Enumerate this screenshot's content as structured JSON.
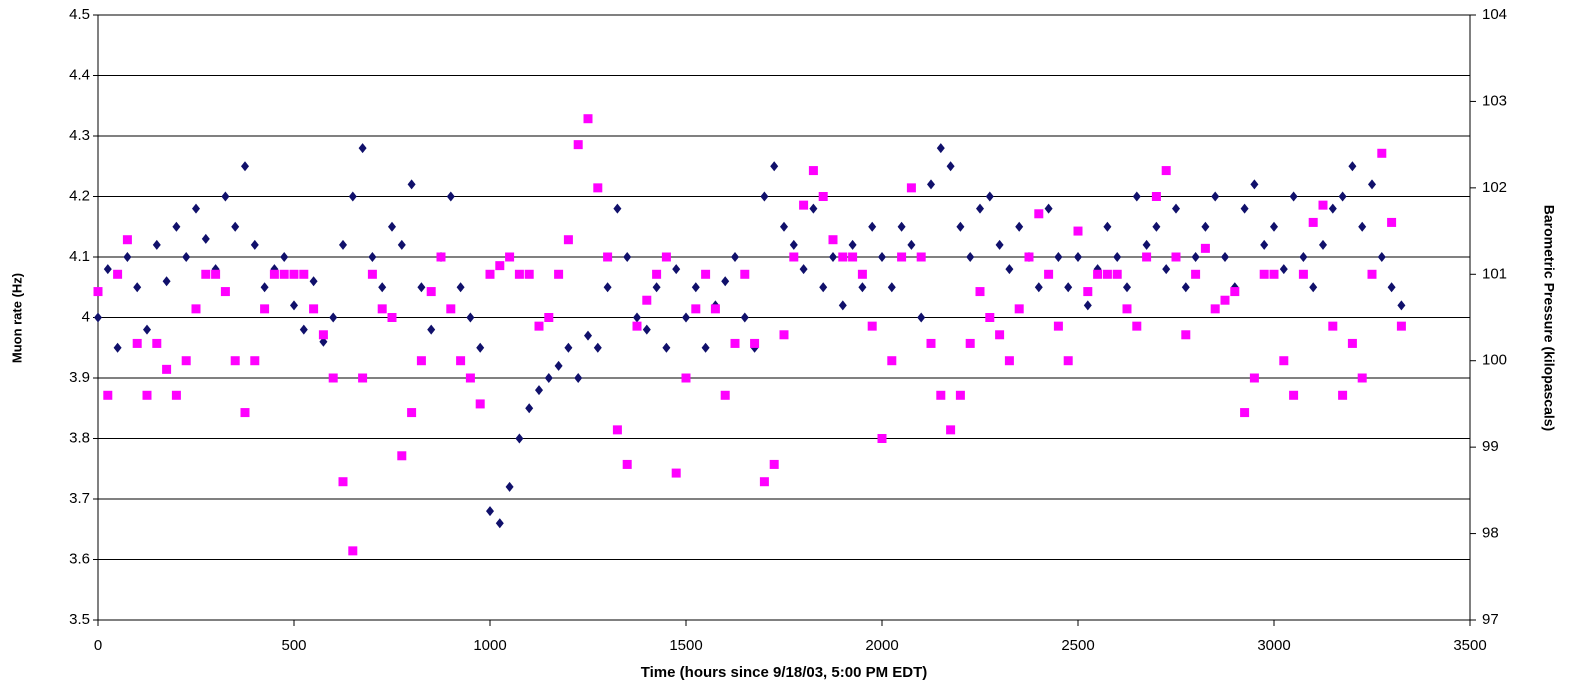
{
  "chart_data": {
    "type": "scatter",
    "xlabel": "Time (hours since 9/18/03, 5:00 PM EDT)",
    "ylabel": "Muon rate (Hz)",
    "y2label": "Barometric Pressure (kilopascals)",
    "xlim": [
      0,
      3500
    ],
    "xticks": [
      0,
      500,
      1000,
      1500,
      2000,
      2500,
      3000,
      3500
    ],
    "ylim": [
      3.5,
      4.5
    ],
    "yticks": [
      3.5,
      3.6,
      3.7,
      3.8,
      3.9,
      4,
      4.1,
      4.2,
      4.3,
      4.4,
      4.5
    ],
    "y2lim": [
      97,
      104
    ],
    "y2ticks": [
      97,
      98,
      99,
      100,
      101,
      102,
      103,
      104
    ],
    "grid": true,
    "x": [
      0,
      25,
      50,
      75,
      100,
      125,
      150,
      175,
      200,
      225,
      250,
      275,
      300,
      325,
      350,
      375,
      400,
      425,
      450,
      475,
      500,
      525,
      550,
      575,
      600,
      625,
      650,
      675,
      700,
      725,
      750,
      775,
      800,
      825,
      850,
      875,
      900,
      925,
      950,
      975,
      1000,
      1025,
      1050,
      1075,
      1100,
      1125,
      1150,
      1175,
      1200,
      1225,
      1250,
      1275,
      1300,
      1325,
      1350,
      1375,
      1400,
      1425,
      1450,
      1475,
      1500,
      1525,
      1550,
      1575,
      1600,
      1625,
      1650,
      1675,
      1700,
      1725,
      1750,
      1775,
      1800,
      1825,
      1850,
      1875,
      1900,
      1925,
      1950,
      1975,
      2000,
      2025,
      2050,
      2075,
      2100,
      2125,
      2150,
      2175,
      2200,
      2225,
      2250,
      2275,
      2300,
      2325,
      2350,
      2375,
      2400,
      2425,
      2450,
      2475,
      2500,
      2525,
      2550,
      2575,
      2600,
      2625,
      2650,
      2675,
      2700,
      2725,
      2750,
      2775,
      2800,
      2825,
      2850,
      2875,
      2900,
      2925,
      2950,
      2975,
      3000,
      3025,
      3050,
      3075,
      3100,
      3125,
      3150,
      3175,
      3200,
      3225,
      3250,
      3275,
      3300,
      3325
    ],
    "series": [
      {
        "color": "#10106b",
        "marker": "diamond",
        "values": [
          4.0,
          4.08,
          3.95,
          4.1,
          4.05,
          3.98,
          4.12,
          4.06,
          4.15,
          4.1,
          4.18,
          4.13,
          4.08,
          4.2,
          4.15,
          4.25,
          4.12,
          4.05,
          4.08,
          4.1,
          4.02,
          3.98,
          4.06,
          3.96,
          4.0,
          4.12,
          4.2,
          4.28,
          4.1,
          4.05,
          4.15,
          4.12,
          4.22,
          4.05,
          3.98,
          4.1,
          4.2,
          4.05,
          4.0,
          3.95,
          3.68,
          3.66,
          3.72,
          3.8,
          3.85,
          3.88,
          3.9,
          3.92,
          3.95,
          3.9,
          3.97,
          3.95,
          4.05,
          4.18,
          4.1,
          4.0,
          3.98,
          4.05,
          3.95,
          4.08,
          4.0,
          4.05,
          3.95,
          4.02,
          4.06,
          4.1,
          4.0,
          3.95,
          4.2,
          4.25,
          4.15,
          4.12,
          4.08,
          4.18,
          4.05,
          4.1,
          4.02,
          4.12,
          4.05,
          4.15,
          4.1,
          4.05,
          4.15,
          4.12,
          4.0,
          4.22,
          4.28,
          4.25,
          4.15,
          4.1,
          4.18,
          4.2,
          4.12,
          4.08,
          4.15,
          4.1,
          4.05,
          4.18,
          4.1,
          4.05,
          4.1,
          4.02,
          4.08,
          4.15,
          4.1,
          4.05,
          4.2,
          4.12,
          4.15,
          4.08,
          4.18,
          4.05,
          4.1,
          4.15,
          4.2,
          4.1,
          4.05,
          4.18,
          4.22,
          4.12,
          4.15,
          4.08,
          4.2,
          4.1,
          4.05,
          4.12,
          4.18,
          4.2,
          4.25,
          4.15,
          4.22,
          4.1,
          4.05,
          4.02
        ]
      },
      {
        "color": "#ff00ff",
        "marker": "square",
        "axis": "y2",
        "values": [
          100.8,
          99.6,
          101.0,
          101.4,
          100.2,
          99.6,
          100.2,
          99.9,
          99.6,
          100.0,
          100.6,
          101.0,
          101.0,
          100.8,
          100.0,
          99.4,
          100.0,
          100.6,
          101.0,
          101.0,
          101.0,
          101.0,
          100.6,
          100.3,
          99.8,
          98.6,
          97.8,
          99.8,
          101.0,
          100.6,
          100.5,
          98.9,
          99.4,
          100.0,
          100.8,
          101.2,
          100.6,
          100.0,
          99.8,
          99.5,
          101.0,
          101.1,
          101.2,
          101.0,
          101.0,
          100.4,
          100.5,
          101.0,
          101.4,
          102.5,
          102.8,
          102.0,
          101.2,
          99.2,
          98.8,
          100.4,
          100.7,
          101.0,
          101.2,
          98.7,
          99.8,
          100.6,
          101.0,
          100.6,
          99.6,
          100.2,
          101.0,
          100.2,
          98.6,
          98.8,
          100.3,
          101.2,
          101.8,
          102.2,
          101.9,
          101.4,
          101.2,
          101.2,
          101.0,
          100.4,
          99.1,
          100.0,
          101.2,
          102.0,
          101.2,
          100.2,
          99.6,
          99.2,
          99.6,
          100.2,
          100.8,
          100.5,
          100.3,
          100.0,
          100.6,
          101.2,
          101.7,
          101.0,
          100.4,
          100.0,
          101.5,
          100.8,
          101.0,
          101.0,
          101.0,
          100.6,
          100.4,
          101.2,
          101.9,
          102.2,
          101.2,
          100.3,
          101.0,
          101.3,
          100.6,
          100.7,
          100.8,
          99.4,
          99.8,
          101.0,
          101.0,
          100.0,
          99.6,
          101.0,
          101.6,
          101.8,
          100.4,
          99.6,
          100.2,
          99.8,
          101.0,
          102.4,
          101.6,
          100.4
        ]
      }
    ]
  }
}
